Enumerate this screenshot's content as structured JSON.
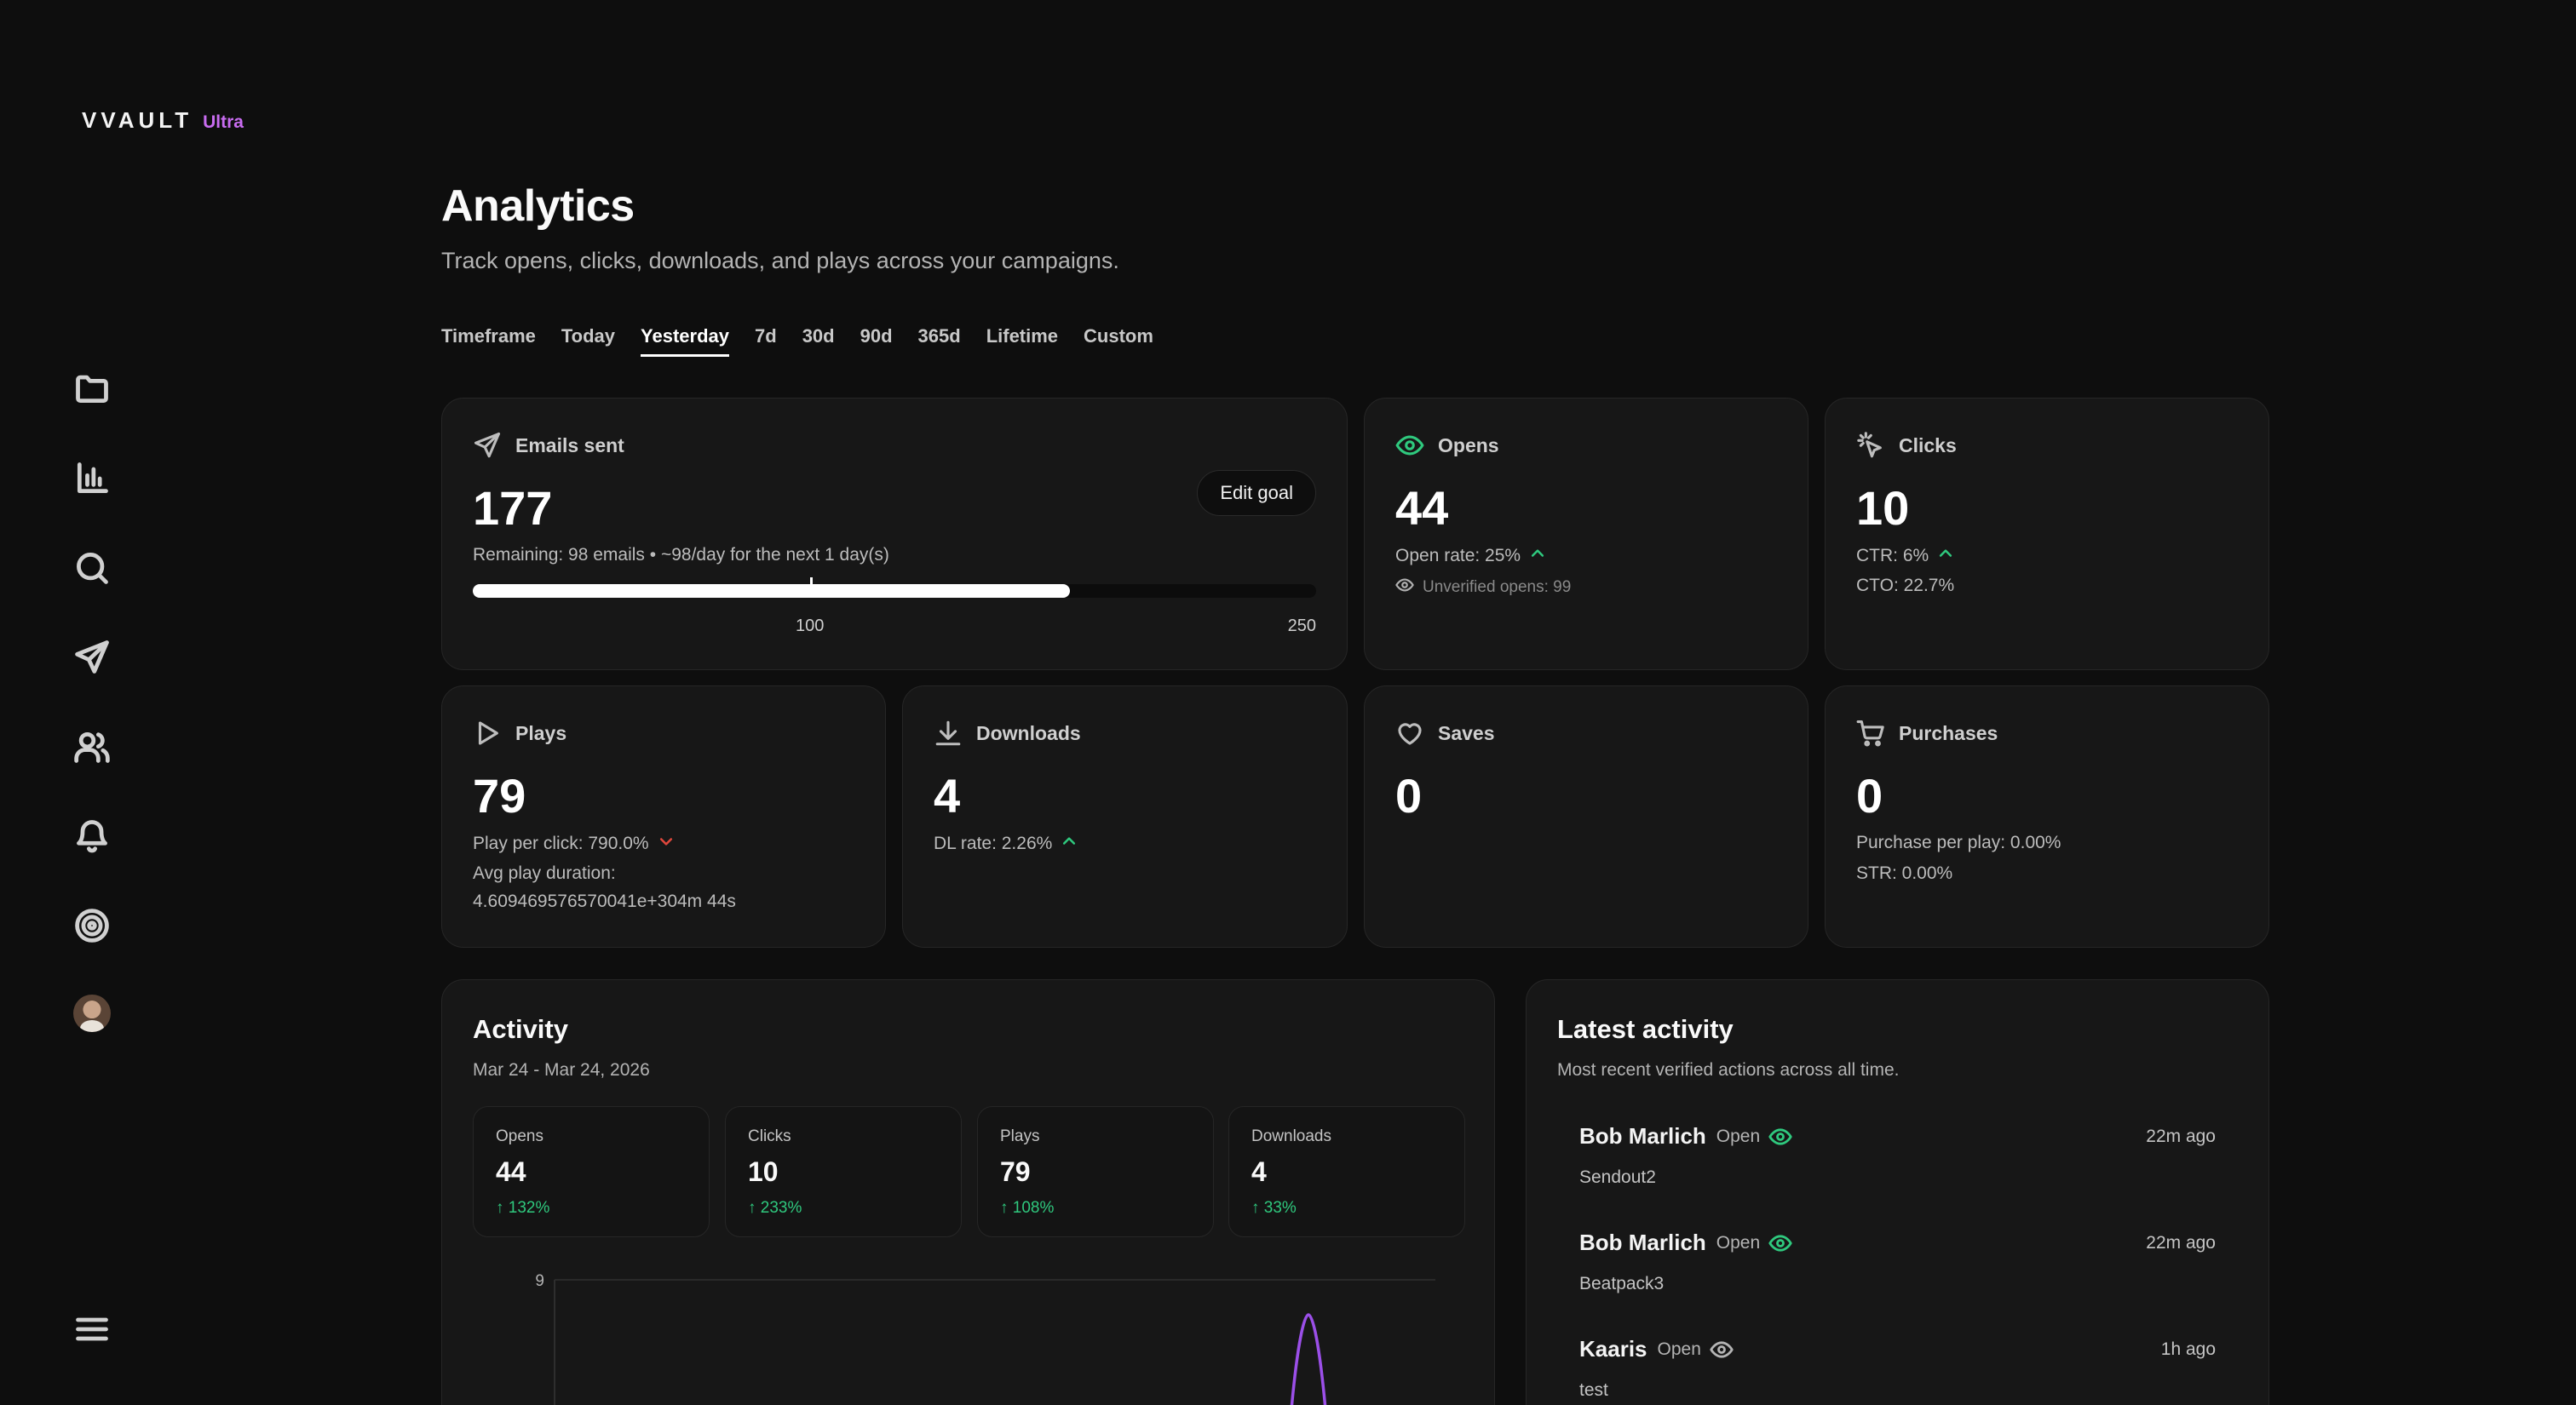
{
  "app": {
    "logo": "VVAULT",
    "badge": "Ultra"
  },
  "sidebar": {
    "icons": [
      "folder-icon",
      "bar-chart-icon",
      "search-icon",
      "send-icon",
      "users-icon",
      "bell-icon",
      "target-icon",
      "avatar",
      "menu-icon"
    ]
  },
  "header": {
    "title": "Analytics",
    "subtitle": "Track opens, clicks, downloads, and plays across your campaigns."
  },
  "tabs": {
    "timeframe": "Timeframe",
    "today": "Today",
    "yesterday": "Yesterday",
    "d7": "7d",
    "d30": "30d",
    "d90": "90d",
    "d365": "365d",
    "lifetime": "Lifetime",
    "custom": "Custom",
    "active": "Yesterday"
  },
  "cards": {
    "emails": {
      "label": "Emails sent",
      "value": "177",
      "remaining": "Remaining: 98 emails • ~98/day for the next 1 day(s)",
      "edit_goal": "Edit goal",
      "progress": 0.708,
      "marker": 0.4,
      "marker_label": "100",
      "max_label": "250"
    },
    "opens": {
      "label": "Opens",
      "value": "44",
      "rate": "Open rate: 25%",
      "unverified": "Unverified opens: 99"
    },
    "clicks": {
      "label": "Clicks",
      "value": "10",
      "ctr": "CTR: 6%",
      "cto": "CTO: 22.7%"
    },
    "plays": {
      "label": "Plays",
      "value": "79",
      "per_click": "Play per click: 790.0%",
      "avg_label": "Avg play duration:",
      "avg_value": "4.609469576570041e+304m 44s"
    },
    "downloads": {
      "label": "Downloads",
      "value": "4",
      "rate": "DL rate: 2.26%"
    },
    "saves": {
      "label": "Saves",
      "value": "0"
    },
    "purchases": {
      "label": "Purchases",
      "value": "0",
      "per_play": "Purchase per play: 0.00%",
      "str": "STR: 0.00%"
    }
  },
  "activity": {
    "title": "Activity",
    "range": "Mar 24 - Mar 24, 2026",
    "metrics": [
      {
        "label": "Opens",
        "value": "44",
        "delta": "↑ 132%"
      },
      {
        "label": "Clicks",
        "value": "10",
        "delta": "↑ 233%"
      },
      {
        "label": "Plays",
        "value": "79",
        "delta": "↑ 108%"
      },
      {
        "label": "Downloads",
        "value": "4",
        "delta": "↑ 33%"
      }
    ],
    "y_tick_label": "9"
  },
  "latest": {
    "title": "Latest activity",
    "subtitle": "Most recent verified actions across all time.",
    "rows": [
      {
        "name": "Bob Marlich",
        "action": "Open",
        "time": "22m ago",
        "item": "Sendout2",
        "verified": true
      },
      {
        "name": "Bob Marlich",
        "action": "Open",
        "time": "22m ago",
        "item": "Beatpack3",
        "verified": true
      },
      {
        "name": "Kaaris",
        "action": "Open",
        "time": "1h ago",
        "item": "test",
        "verified": false
      }
    ]
  },
  "colors": {
    "accent_green": "#2fc97e",
    "accent_red": "#e0473c",
    "accent_purple": "#c86cf0",
    "chart_line": "#9b4fe8"
  }
}
